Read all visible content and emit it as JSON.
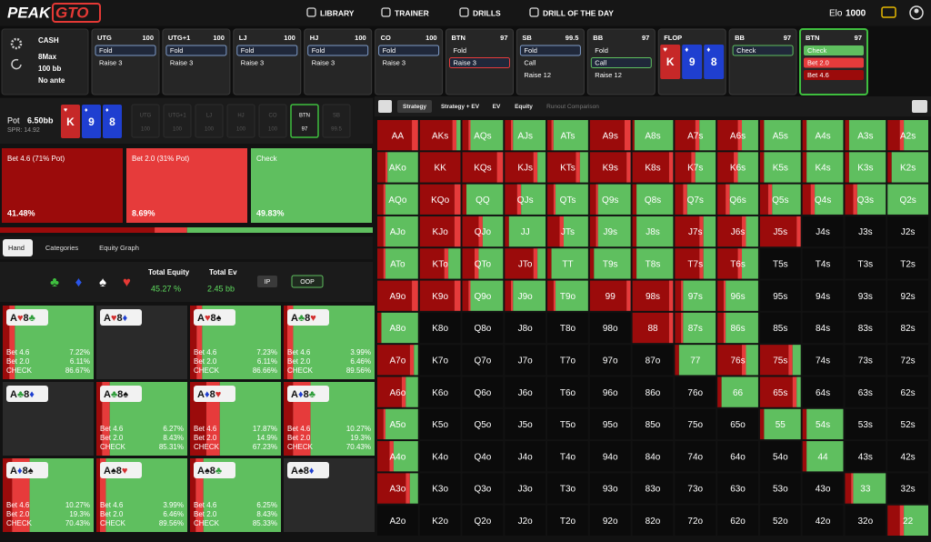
{
  "nav": {
    "logo_a": "PEAK",
    "logo_b": "GTO",
    "menu": [
      "LIBRARY",
      "TRAINER",
      "DRILLS",
      "DRILL OF THE DAY"
    ],
    "elo_label": "Elo",
    "elo": "1000"
  },
  "settings": {
    "game": "CASH",
    "table": "8Max",
    "stack": "100 bb",
    "ante": "No ante"
  },
  "action_colors": [
    "#9b0b0b",
    "#e63b3b",
    "#5fbf5f"
  ],
  "history": [
    {
      "position": "UTG",
      "stack": "100",
      "actions": [
        "Fold",
        "Raise 3"
      ],
      "selected": 0,
      "selected_color": "#7f9cc8"
    },
    {
      "position": "UTG+1",
      "stack": "100",
      "actions": [
        "Fold",
        "Raise 3"
      ],
      "selected": 0,
      "selected_color": "#7f9cc8"
    },
    {
      "position": "LJ",
      "stack": "100",
      "actions": [
        "Fold",
        "Raise 3"
      ],
      "selected": 0,
      "selected_color": "#7f9cc8"
    },
    {
      "position": "HJ",
      "stack": "100",
      "actions": [
        "Fold",
        "Raise 3"
      ],
      "selected": 0,
      "selected_color": "#7f9cc8"
    },
    {
      "position": "CO",
      "stack": "100",
      "actions": [
        "Fold",
        "Raise 3"
      ],
      "selected": 0,
      "selected_color": "#7f9cc8"
    },
    {
      "position": "BTN",
      "stack": "97",
      "actions": [
        "Fold",
        "Raise 3"
      ],
      "selected": 1,
      "selected_color": "#e63b3b"
    },
    {
      "position": "SB",
      "stack": "99.5",
      "actions": [
        "Fold",
        "Call",
        "Raise 12"
      ],
      "selected": 0,
      "selected_color": "#7f9cc8"
    },
    {
      "position": "BB",
      "stack": "97",
      "actions": [
        "Fold",
        "Call",
        "Raise 12"
      ],
      "selected": 1,
      "selected_color": "#5fbf5f"
    }
  ],
  "flop": {
    "label": "FLOP",
    "cards": [
      {
        "rank": "K",
        "suit": "♥",
        "color": "#c62828"
      },
      {
        "rank": "9",
        "suit": "♦",
        "color": "#1f3fd0"
      },
      {
        "rank": "8",
        "suit": "♦",
        "color": "#1f3fd0"
      }
    ]
  },
  "current": [
    {
      "position": "BB",
      "stack": "97",
      "actions": [
        "Check"
      ],
      "selected": 0,
      "selected_color": "#5fbf5f"
    },
    {
      "position": "BTN",
      "stack": "97",
      "actions": [
        "Check",
        "Bet 2.0",
        "Bet 4.6"
      ],
      "fills": [
        "#5fbf5f",
        "#e63b3b",
        "#9b0b0b"
      ],
      "active": true
    }
  ],
  "pot": {
    "label": "Pot",
    "value": "6.50bb",
    "spr": "SPR: 14.92",
    "seats": [
      {
        "position": "UTG",
        "stack": "100"
      },
      {
        "position": "UTG+1",
        "stack": "100"
      },
      {
        "position": "LJ",
        "stack": "100"
      },
      {
        "position": "HJ",
        "stack": "100"
      },
      {
        "position": "CO",
        "stack": "100"
      },
      {
        "position": "BTN",
        "stack": "97",
        "active": true
      },
      {
        "position": "SB",
        "stack": "99.5"
      }
    ]
  },
  "strategy": [
    {
      "label": "Bet 4.6 (71% Pot)",
      "value": 41.48,
      "value_label": "41.48%",
      "color": "#9b0b0b"
    },
    {
      "label": "Bet 2.0 (31% Pot)",
      "value": 8.69,
      "value_label": "8.69%",
      "color": "#e63b3b"
    },
    {
      "label": "Check",
      "value": 49.83,
      "value_label": "49.83%",
      "color": "#5fbf5f"
    }
  ],
  "left_tabs": [
    "Hand",
    "Categories",
    "Equity Graph"
  ],
  "equity": {
    "suits": [
      {
        "symbol": "♣",
        "color": "#3fbf3f"
      },
      {
        "symbol": "♦",
        "color": "#2a55e8"
      },
      {
        "symbol": "♠",
        "color": "#ffffff"
      },
      {
        "symbol": "♥",
        "color": "#e53935"
      }
    ],
    "equity_label": "Total Equity",
    "equity_value": "45.27 %",
    "ev_label": "Total Ev",
    "ev_value": "2.45 bb",
    "ip": "IP",
    "oop": "OOP"
  },
  "hands": {
    "actions": [
      "Bet 4.6",
      "Bet 2.0",
      "CHECK"
    ],
    "suit_colors": {
      "♥": "#d32f2f",
      "♦": "#1f3fd0",
      "♣": "#2e9d3a",
      "♠": "#111111"
    },
    "cells": [
      {
        "cards": [
          {
            "rank": "A",
            "suit": "♥"
          },
          {
            "rank": "8",
            "suit": "♣"
          }
        ],
        "freqs": [
          7.22,
          6.11,
          86.67
        ],
        "freq_labels": [
          "7.22%",
          "6.11%",
          "86.67%"
        ]
      },
      {
        "cards": [
          {
            "rank": "A",
            "suit": "♥"
          },
          {
            "rank": "8",
            "suit": "♦"
          }
        ],
        "freqs": null
      },
      {
        "cards": [
          {
            "rank": "A",
            "suit": "♥"
          },
          {
            "rank": "8",
            "suit": "♠"
          }
        ],
        "freqs": [
          7.23,
          6.11,
          86.66
        ],
        "freq_labels": [
          "7.23%",
          "6.11%",
          "86.66%"
        ]
      },
      {
        "cards": [
          {
            "rank": "A",
            "suit": "♣"
          },
          {
            "rank": "8",
            "suit": "♥"
          }
        ],
        "freqs": [
          3.99,
          6.46,
          89.56
        ],
        "freq_labels": [
          "3.99%",
          "6.46%",
          "89.56%"
        ]
      },
      {
        "cards": [
          {
            "rank": "A",
            "suit": "♣"
          },
          {
            "rank": "8",
            "suit": "♦"
          }
        ],
        "freqs": null
      },
      {
        "cards": [
          {
            "rank": "A",
            "suit": "♣"
          },
          {
            "rank": "8",
            "suit": "♠"
          }
        ],
        "freqs": [
          6.27,
          8.43,
          85.31
        ],
        "freq_labels": [
          "6.27%",
          "8.43%",
          "85.31%"
        ]
      },
      {
        "cards": [
          {
            "rank": "A",
            "suit": "♦"
          },
          {
            "rank": "8",
            "suit": "♥"
          }
        ],
        "freqs": [
          17.87,
          14.9,
          67.23
        ],
        "freq_labels": [
          "17.87%",
          "14.9%",
          "67.23%"
        ]
      },
      {
        "cards": [
          {
            "rank": "A",
            "suit": "♦"
          },
          {
            "rank": "8",
            "suit": "♣"
          }
        ],
        "freqs": [
          10.27,
          19.3,
          70.43
        ],
        "freq_labels": [
          "10.27%",
          "19.3%",
          "70.43%"
        ]
      },
      {
        "cards": [
          {
            "rank": "A",
            "suit": "♦"
          },
          {
            "rank": "8",
            "suit": "♠"
          }
        ],
        "freqs": [
          10.27,
          19.3,
          70.43
        ],
        "freq_labels": [
          "10.27%",
          "19.3%",
          "70.43%"
        ]
      },
      {
        "cards": [
          {
            "rank": "A",
            "suit": "♠"
          },
          {
            "rank": "8",
            "suit": "♥"
          }
        ],
        "freqs": [
          3.99,
          6.46,
          89.56
        ],
        "freq_labels": [
          "3.99%",
          "6.46%",
          "89.56%"
        ]
      },
      {
        "cards": [
          {
            "rank": "A",
            "suit": "♠"
          },
          {
            "rank": "8",
            "suit": "♣"
          }
        ],
        "freqs": [
          6.25,
          8.43,
          85.33
        ],
        "freq_labels": [
          "6.25%",
          "8.43%",
          "85.33%"
        ]
      },
      {
        "cards": [
          {
            "rank": "A",
            "suit": "♠"
          },
          {
            "rank": "8",
            "suit": "♦"
          }
        ],
        "freqs": null
      }
    ]
  },
  "right_tabs": [
    "Strategy",
    "Strategy + EV",
    "EV",
    "Equity",
    "Runout Comparison"
  ],
  "range_grid": {
    "labels": [
      [
        "AA",
        "AKs",
        "AQs",
        "AJs",
        "ATs",
        "A9s",
        "A8s",
        "A7s",
        "A6s",
        "A5s",
        "A4s",
        "A3s",
        "A2s"
      ],
      [
        "AKo",
        "KK",
        "KQs",
        "KJs",
        "KTs",
        "K9s",
        "K8s",
        "K7s",
        "K6s",
        "K5s",
        "K4s",
        "K3s",
        "K2s"
      ],
      [
        "AQo",
        "KQo",
        "QQ",
        "QJs",
        "QTs",
        "Q9s",
        "Q8s",
        "Q7s",
        "Q6s",
        "Q5s",
        "Q4s",
        "Q3s",
        "Q2s"
      ],
      [
        "AJo",
        "KJo",
        "QJo",
        "JJ",
        "JTs",
        "J9s",
        "J8s",
        "J7s",
        "J6s",
        "J5s",
        "J4s",
        "J3s",
        "J2s"
      ],
      [
        "ATo",
        "KTo",
        "QTo",
        "JTo",
        "TT",
        "T9s",
        "T8s",
        "T7s",
        "T6s",
        "T5s",
        "T4s",
        "T3s",
        "T2s"
      ],
      [
        "A9o",
        "K9o",
        "Q9o",
        "J9o",
        "T9o",
        "99",
        "98s",
        "97s",
        "96s",
        "95s",
        "94s",
        "93s",
        "92s"
      ],
      [
        "A8o",
        "K8o",
        "Q8o",
        "J8o",
        "T8o",
        "98o",
        "88",
        "87s",
        "86s",
        "85s",
        "84s",
        "83s",
        "82s"
      ],
      [
        "A7o",
        "K7o",
        "Q7o",
        "J7o",
        "T7o",
        "97o",
        "87o",
        "77",
        "76s",
        "75s",
        "74s",
        "73s",
        "72s"
      ],
      [
        "A6o",
        "K6o",
        "Q6o",
        "J6o",
        "T6o",
        "96o",
        "86o",
        "76o",
        "66",
        "65s",
        "64s",
        "63s",
        "62s"
      ],
      [
        "A5o",
        "K5o",
        "Q5o",
        "J5o",
        "T5o",
        "95o",
        "85o",
        "75o",
        "65o",
        "55",
        "54s",
        "53s",
        "52s"
      ],
      [
        "A4o",
        "K4o",
        "Q4o",
        "J4o",
        "T4o",
        "94o",
        "84o",
        "74o",
        "64o",
        "54o",
        "44",
        "43s",
        "42s"
      ],
      [
        "A3o",
        "K3o",
        "Q3o",
        "J3o",
        "T3o",
        "93o",
        "83o",
        "73o",
        "63o",
        "53o",
        "43o",
        "33",
        "32s"
      ],
      [
        "A2o",
        "K2o",
        "Q2o",
        "J2o",
        "T2o",
        "92o",
        "82o",
        "72o",
        "62o",
        "52o",
        "42o",
        "32o",
        "22"
      ]
    ],
    "mixes": [
      [
        [
          85,
          15,
          0
        ],
        [
          80,
          10,
          10
        ],
        [
          15,
          5,
          80
        ],
        [
          15,
          5,
          80
        ],
        [
          10,
          5,
          85
        ],
        [
          85,
          15,
          0
        ],
        [
          5,
          0,
          95
        ],
        [
          50,
          10,
          40
        ],
        [
          50,
          10,
          40
        ],
        [
          10,
          0,
          90
        ],
        [
          10,
          0,
          90
        ],
        [
          10,
          0,
          90
        ],
        [
          30,
          10,
          60
        ]
      ],
      [
        [
          20,
          5,
          75
        ],
        [
          100,
          0,
          0
        ],
        [
          85,
          15,
          0
        ],
        [
          70,
          10,
          20
        ],
        [
          70,
          10,
          20
        ],
        [
          90,
          10,
          0
        ],
        [
          90,
          10,
          0
        ],
        [
          40,
          10,
          50
        ],
        [
          40,
          10,
          50
        ],
        [
          10,
          0,
          90
        ],
        [
          10,
          0,
          90
        ],
        [
          10,
          0,
          90
        ],
        [
          10,
          0,
          90
        ]
      ],
      [
        [
          15,
          5,
          80
        ],
        [
          85,
          15,
          0
        ],
        [
          10,
          0,
          90
        ],
        [
          30,
          10,
          60
        ],
        [
          15,
          5,
          80
        ],
        [
          15,
          5,
          80
        ],
        [
          10,
          0,
          90
        ],
        [
          20,
          10,
          70
        ],
        [
          20,
          10,
          70
        ],
        [
          20,
          10,
          70
        ],
        [
          20,
          10,
          70
        ],
        [
          20,
          10,
          70
        ],
        [
          0,
          0,
          100
        ]
      ],
      [
        [
          15,
          5,
          80
        ],
        [
          85,
          15,
          0
        ],
        [
          40,
          10,
          50
        ],
        [
          10,
          0,
          90
        ],
        [
          30,
          10,
          60
        ],
        [
          15,
          5,
          80
        ],
        [
          10,
          0,
          90
        ],
        [
          60,
          10,
          30
        ],
        [
          60,
          10,
          30
        ],
        [
          90,
          10,
          0
        ],
        null,
        null,
        null
      ],
      [
        [
          15,
          5,
          80
        ],
        [
          60,
          10,
          30
        ],
        [
          30,
          10,
          60
        ],
        [
          70,
          10,
          20
        ],
        [
          10,
          0,
          90
        ],
        [
          10,
          0,
          90
        ],
        [
          10,
          0,
          90
        ],
        [
          60,
          10,
          30
        ],
        [
          50,
          10,
          40
        ],
        null,
        null,
        null,
        null
      ],
      [
        [
          85,
          15,
          0
        ],
        [
          85,
          15,
          0
        ],
        [
          15,
          5,
          80
        ],
        [
          15,
          5,
          80
        ],
        [
          15,
          5,
          80
        ],
        [
          90,
          10,
          0
        ],
        [
          90,
          10,
          0
        ],
        [
          15,
          5,
          80
        ],
        [
          15,
          5,
          80
        ],
        null,
        null,
        null,
        null
      ],
      [
        [
          10,
          0,
          90
        ],
        null,
        null,
        null,
        null,
        null,
        [
          90,
          10,
          0
        ],
        [
          15,
          5,
          80
        ],
        [
          15,
          5,
          80
        ],
        null,
        null,
        null,
        null
      ],
      [
        [
          80,
          10,
          10
        ],
        null,
        null,
        null,
        null,
        null,
        null,
        [
          10,
          0,
          90
        ],
        [
          60,
          10,
          30
        ],
        [
          70,
          10,
          20
        ],
        null,
        null,
        null
      ],
      [
        [
          60,
          10,
          30
        ],
        null,
        null,
        null,
        null,
        null,
        null,
        null,
        [
          10,
          0,
          90
        ],
        [
          80,
          10,
          10
        ],
        null,
        null,
        null
      ],
      [
        [
          15,
          5,
          80
        ],
        null,
        null,
        null,
        null,
        null,
        null,
        null,
        null,
        [
          10,
          0,
          90
        ],
        [
          10,
          0,
          90
        ],
        null,
        null
      ],
      [
        [
          30,
          10,
          60
        ],
        null,
        null,
        null,
        null,
        null,
        null,
        null,
        null,
        null,
        [
          10,
          0,
          90
        ],
        null,
        null
      ],
      [
        [
          70,
          10,
          20
        ],
        null,
        null,
        null,
        null,
        null,
        null,
        null,
        null,
        null,
        null,
        [
          15,
          5,
          80
        ],
        null
      ],
      [
        null,
        null,
        null,
        null,
        null,
        null,
        null,
        null,
        null,
        null,
        null,
        null,
        [
          30,
          10,
          60
        ]
      ]
    ]
  }
}
